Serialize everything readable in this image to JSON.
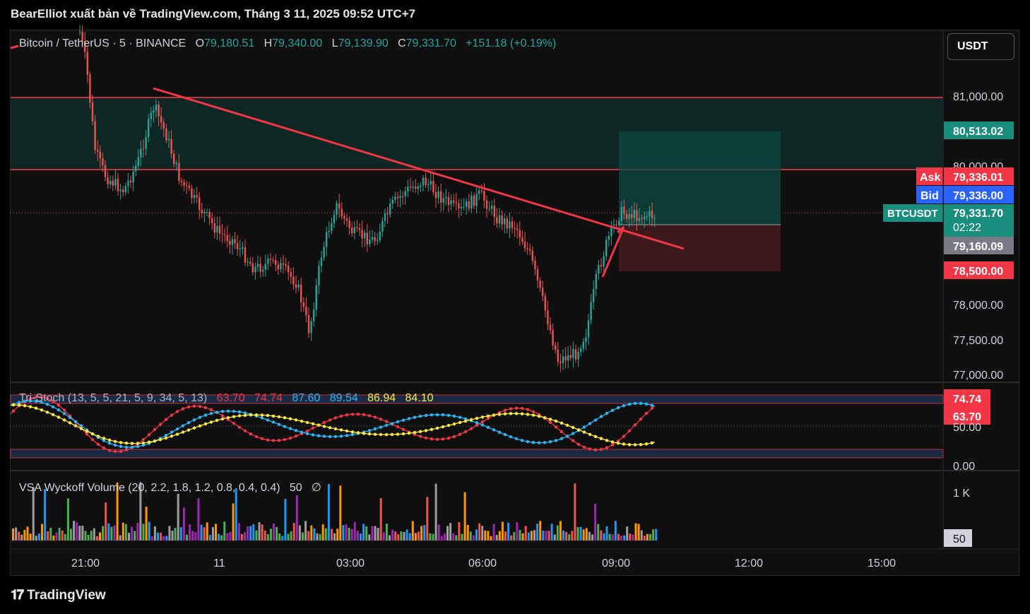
{
  "header": {
    "publisher": "BearElliot xuất bản về TradingView.com, Tháng 3 11, 2025 09:52 UTC+7"
  },
  "symbol": {
    "name": "Bitcoin / TetherUS · 5 · BINANCE",
    "open_label": "O",
    "open": "79,180.51",
    "high_label": "H",
    "high": "79,340.00",
    "low_label": "L",
    "low": "79,139.90",
    "close_label": "C",
    "close": "79,331.70",
    "change": "+151.18 (+0.19%)"
  },
  "currency_button": "USDT",
  "price_axis": {
    "ticks": [
      "81,000.00",
      "80,000.00",
      "78,000.00",
      "77,500.00",
      "77,000.00"
    ],
    "labels": {
      "target": "80,513.02",
      "ask_tag": "Ask",
      "ask": "79,336.01",
      "bid_tag": "Bid",
      "bid": "79,336.00",
      "symbol_tag": "BTCUSDT",
      "last": "79,331.70",
      "countdown": "02:22",
      "entry": "79,160.09",
      "stop": "78,500.00"
    }
  },
  "tri_stoch": {
    "name": "Tri-Stoch (13, 5, 5, 21, 5, 9, 34, 5, 13)",
    "values": [
      "63.70",
      "74.74",
      "87.60",
      "89.54",
      "86.94",
      "84.10"
    ],
    "axis_ticks": [
      "50.00",
      "0.00"
    ],
    "labels": [
      "74.74",
      "63.70"
    ]
  },
  "vsa": {
    "name": "VSA Wyckoff Volume (20, 2.2, 1.8, 1.2, 0.8, 0.4, 0.4)",
    "value": "50",
    "symbol": "∅",
    "axis_tick": "1 K",
    "label": "50"
  },
  "time_axis": [
    "21:00",
    "11",
    "03:00",
    "06:00",
    "09:00",
    "12:00",
    "15:00"
  ],
  "footer": {
    "brand": "TradingView"
  },
  "colors": {
    "up": "#26a69a",
    "down": "#ef5350",
    "trendline": "#f23645",
    "zone": "#0d3b36",
    "ask": "#f23645",
    "bid": "#2962ff"
  }
}
